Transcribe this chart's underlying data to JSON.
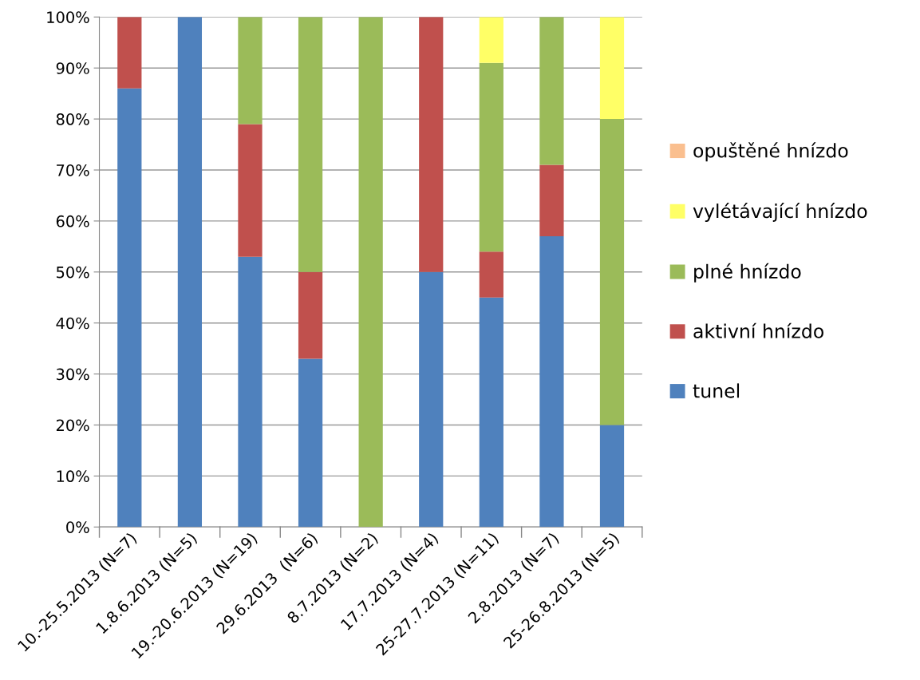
{
  "chart_data": {
    "type": "bar",
    "stacked": true,
    "categories": [
      "10.-25.5.2013 (N=7)",
      "1.8.6.2013 (N=5)",
      "19.-20.6.2013 (N=19)",
      "29.6.2013  (N=6)",
      "8.7.2013 (N=2)",
      "17.7.2013 (N=4)",
      "25-27.7.2013 (N=11)",
      "2.8.2013 (N=7)",
      "25-26.8.2013 (N=5)"
    ],
    "series": [
      {
        "name": "tunel",
        "color": "#4f81bd",
        "values": [
          86,
          100,
          53,
          33,
          0,
          50,
          45,
          57,
          20
        ]
      },
      {
        "name": "aktivní hnízdo",
        "color": "#c0504d",
        "values": [
          14,
          0,
          26,
          17,
          0,
          50,
          9,
          14,
          0
        ]
      },
      {
        "name": "plné hnízdo",
        "color": "#9bbb59",
        "values": [
          0,
          0,
          21,
          50,
          100,
          0,
          37,
          29,
          60
        ]
      },
      {
        "name": "vylétávající hnízdo",
        "color": "#ffff66",
        "values": [
          0,
          0,
          0,
          0,
          0,
          0,
          9,
          0,
          20
        ]
      },
      {
        "name": "opuštěné hnízdo",
        "color": "#fabf8f",
        "values": [
          0,
          0,
          0,
          0,
          0,
          0,
          0,
          0,
          0
        ]
      }
    ],
    "ylim": [
      0,
      100
    ],
    "yticks": [
      {
        "value": 0,
        "label": "0%"
      },
      {
        "value": 10,
        "label": "10%"
      },
      {
        "value": 20,
        "label": "20%"
      },
      {
        "value": 30,
        "label": "30%"
      },
      {
        "value": 40,
        "label": "40%"
      },
      {
        "value": 50,
        "label": "50%"
      },
      {
        "value": 60,
        "label": "60%"
      },
      {
        "value": 70,
        "label": "70%"
      },
      {
        "value": 80,
        "label": "80%"
      },
      {
        "value": 90,
        "label": "90%"
      },
      {
        "value": 100,
        "label": "100%"
      }
    ],
    "grid": "y",
    "legend": "right"
  }
}
